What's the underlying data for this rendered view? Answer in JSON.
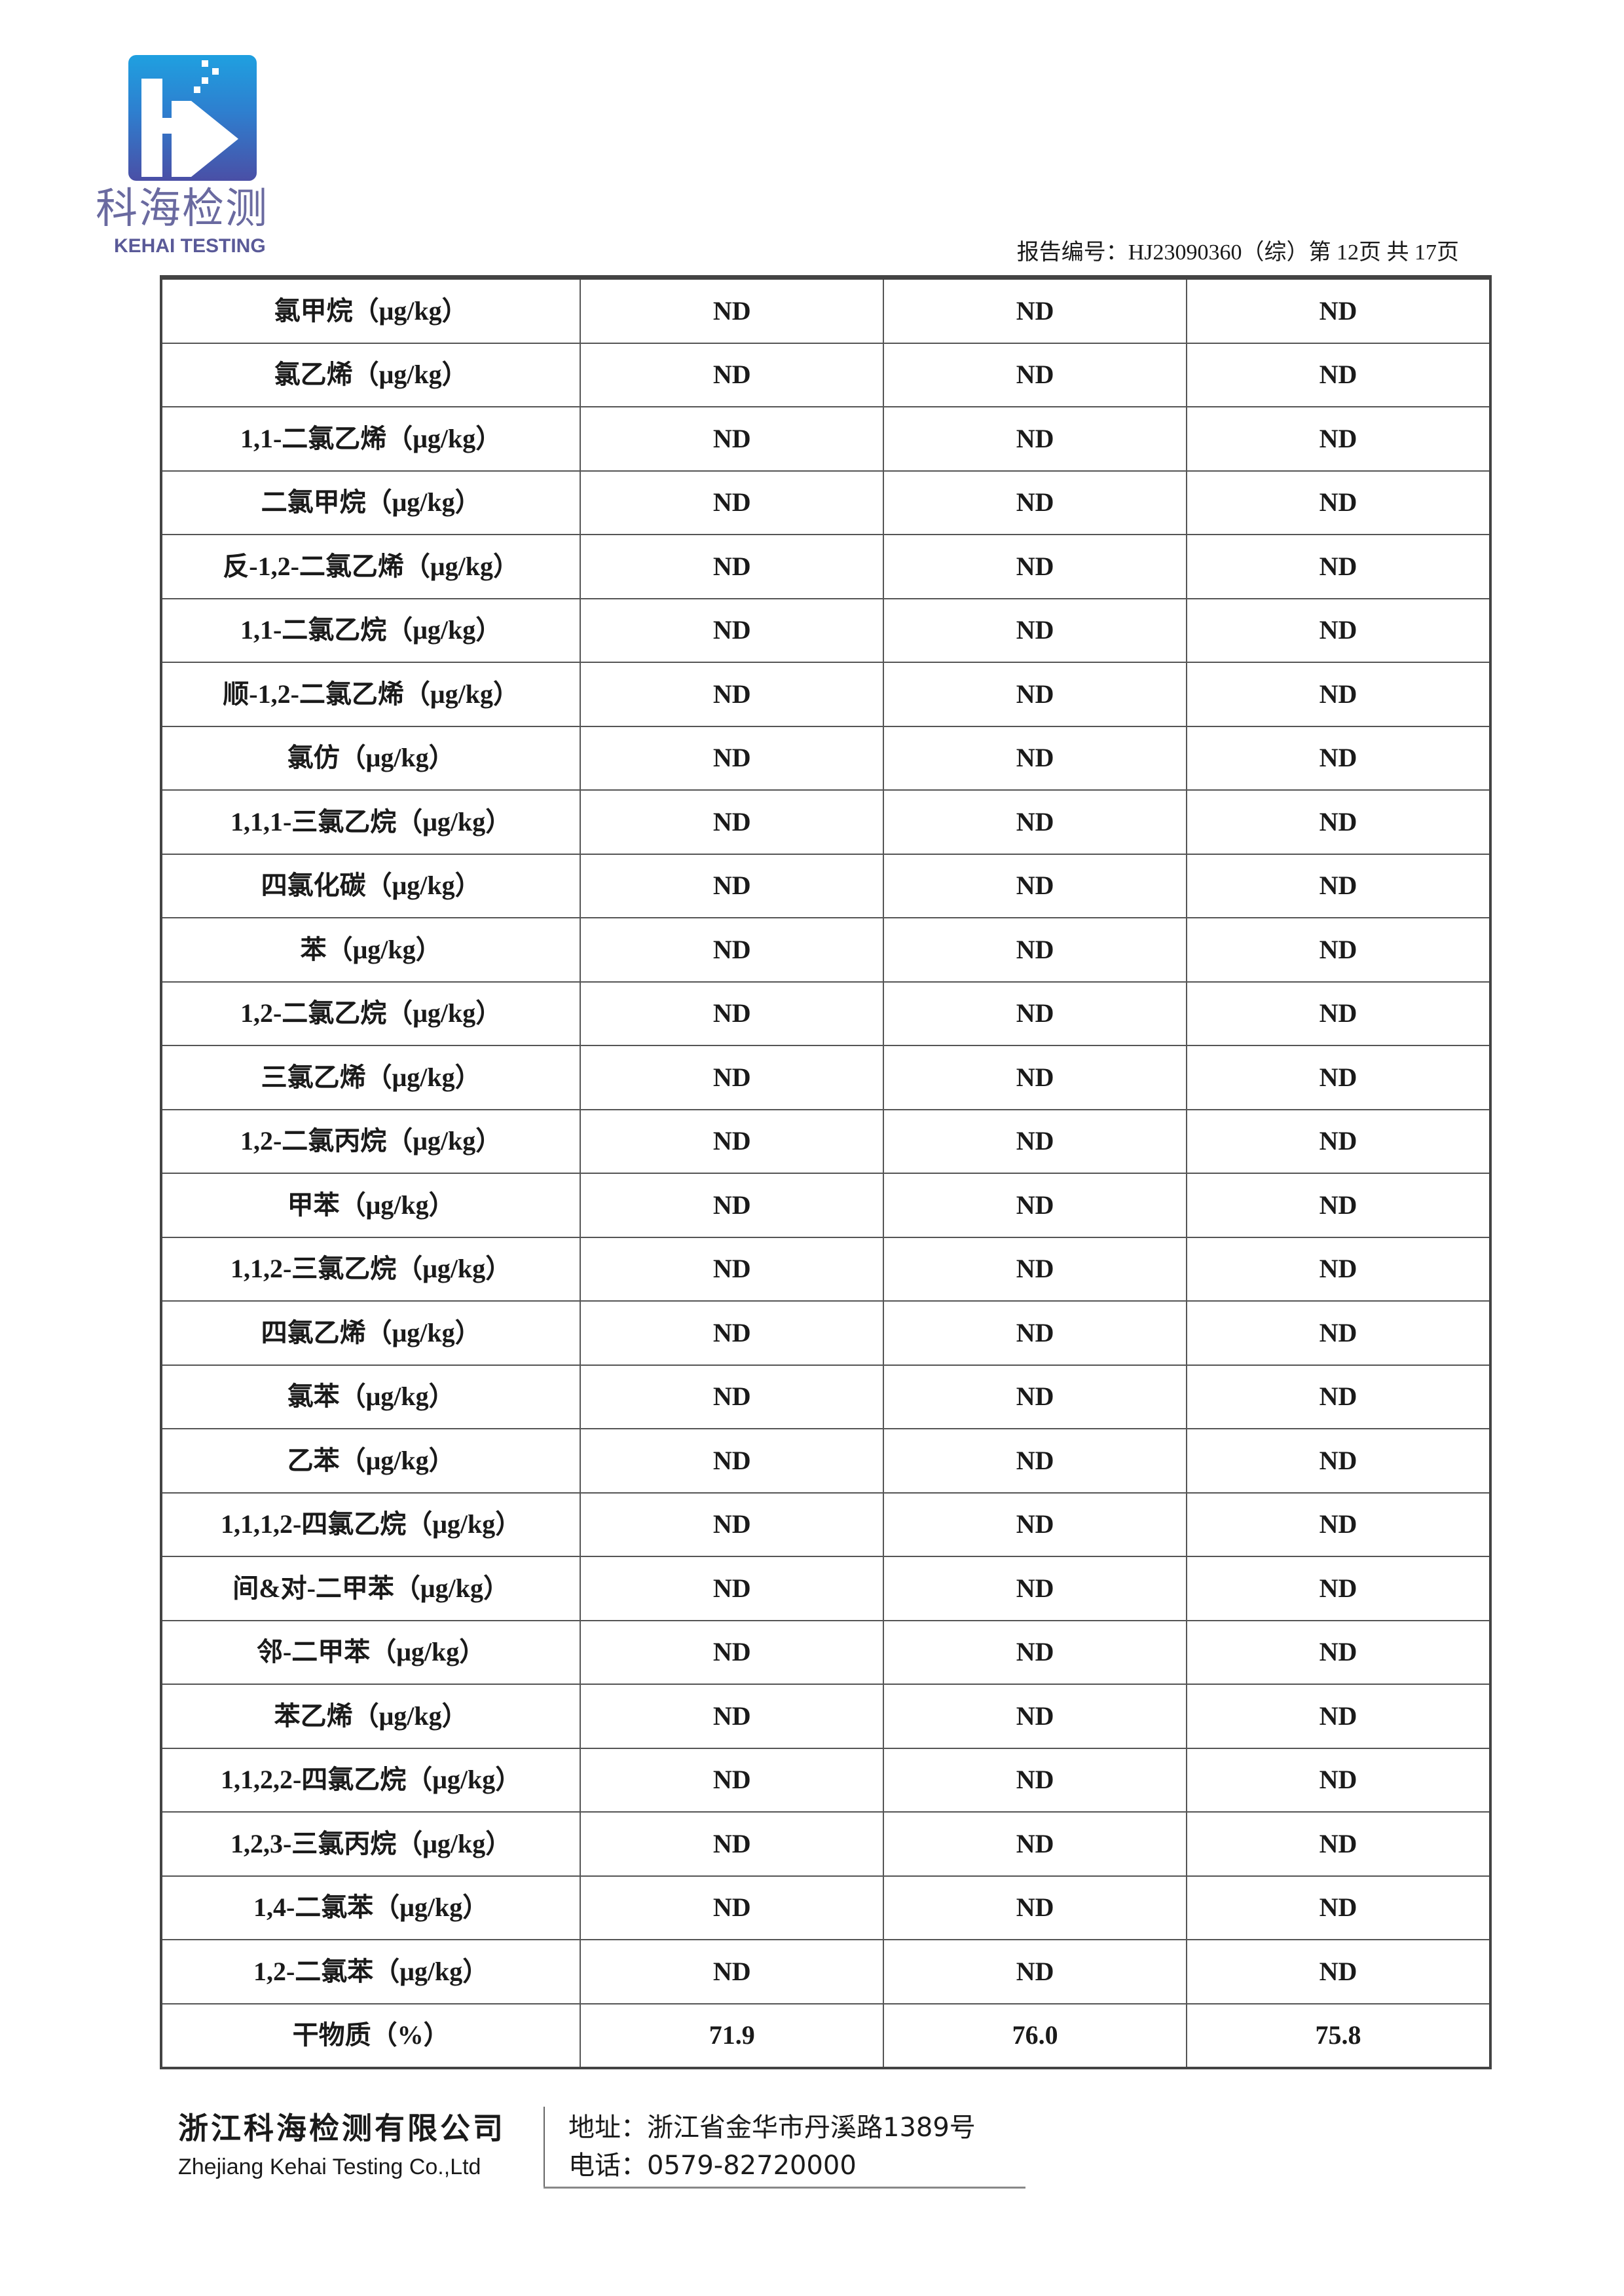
{
  "header": {
    "logo_cn": "科海检测",
    "logo_en": "KEHAI TESTING",
    "report_number": "报告编号：HJ23090360（综）第 12页  共 17页"
  },
  "table": {
    "rows": [
      {
        "item": "氯甲烷（μg/kg）",
        "values": [
          "ND",
          "ND",
          "ND"
        ]
      },
      {
        "item": "氯乙烯（μg/kg）",
        "values": [
          "ND",
          "ND",
          "ND"
        ]
      },
      {
        "item": "1,1-二氯乙烯（μg/kg）",
        "values": [
          "ND",
          "ND",
          "ND"
        ]
      },
      {
        "item": "二氯甲烷（μg/kg）",
        "values": [
          "ND",
          "ND",
          "ND"
        ]
      },
      {
        "item": "反-1,2-二氯乙烯（μg/kg）",
        "values": [
          "ND",
          "ND",
          "ND"
        ]
      },
      {
        "item": "1,1-二氯乙烷（μg/kg）",
        "values": [
          "ND",
          "ND",
          "ND"
        ]
      },
      {
        "item": "顺-1,2-二氯乙烯（μg/kg）",
        "values": [
          "ND",
          "ND",
          "ND"
        ]
      },
      {
        "item": "氯仿（μg/kg）",
        "values": [
          "ND",
          "ND",
          "ND"
        ]
      },
      {
        "item": "1,1,1-三氯乙烷（μg/kg）",
        "values": [
          "ND",
          "ND",
          "ND"
        ]
      },
      {
        "item": "四氯化碳（μg/kg）",
        "values": [
          "ND",
          "ND",
          "ND"
        ]
      },
      {
        "item": "苯（μg/kg）",
        "values": [
          "ND",
          "ND",
          "ND"
        ]
      },
      {
        "item": "1,2-二氯乙烷（μg/kg）",
        "values": [
          "ND",
          "ND",
          "ND"
        ]
      },
      {
        "item": "三氯乙烯（μg/kg）",
        "values": [
          "ND",
          "ND",
          "ND"
        ]
      },
      {
        "item": "1,2-二氯丙烷（μg/kg）",
        "values": [
          "ND",
          "ND",
          "ND"
        ]
      },
      {
        "item": "甲苯（μg/kg）",
        "values": [
          "ND",
          "ND",
          "ND"
        ]
      },
      {
        "item": "1,1,2-三氯乙烷（μg/kg）",
        "values": [
          "ND",
          "ND",
          "ND"
        ]
      },
      {
        "item": "四氯乙烯（μg/kg）",
        "values": [
          "ND",
          "ND",
          "ND"
        ]
      },
      {
        "item": "氯苯（μg/kg）",
        "values": [
          "ND",
          "ND",
          "ND"
        ]
      },
      {
        "item": "乙苯（μg/kg）",
        "values": [
          "ND",
          "ND",
          "ND"
        ]
      },
      {
        "item": "1,1,1,2-四氯乙烷（μg/kg）",
        "values": [
          "ND",
          "ND",
          "ND"
        ]
      },
      {
        "item": "间&对-二甲苯（μg/kg）",
        "values": [
          "ND",
          "ND",
          "ND"
        ]
      },
      {
        "item": "邻-二甲苯（μg/kg）",
        "values": [
          "ND",
          "ND",
          "ND"
        ]
      },
      {
        "item": "苯乙烯（μg/kg）",
        "values": [
          "ND",
          "ND",
          "ND"
        ]
      },
      {
        "item": "1,1,2,2-四氯乙烷（μg/kg）",
        "values": [
          "ND",
          "ND",
          "ND"
        ]
      },
      {
        "item": "1,2,3-三氯丙烷（μg/kg）",
        "values": [
          "ND",
          "ND",
          "ND"
        ]
      },
      {
        "item": "1,4-二氯苯（μg/kg）",
        "values": [
          "ND",
          "ND",
          "ND"
        ]
      },
      {
        "item": "1,2-二氯苯（μg/kg）",
        "values": [
          "ND",
          "ND",
          "ND"
        ]
      },
      {
        "item": "干物质（%）",
        "values": [
          "71.9",
          "76.0",
          "75.8"
        ]
      }
    ]
  },
  "footer": {
    "company_cn": "浙江科海检测有限公司",
    "company_en": "Zhejiang Kehai Testing Co.,Ltd",
    "address": "地址：浙江省金华市丹溪路1389号",
    "phone": "电话：0579-82720000"
  }
}
